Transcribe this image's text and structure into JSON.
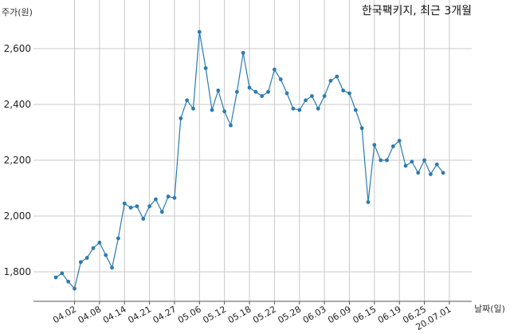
{
  "chart_data": {
    "type": "line",
    "title": "한국팩키지, 최근 3개월",
    "ylabel": "주가(원)",
    "xlabel": "날짜(일)",
    "ylim": [
      1700,
      2750
    ],
    "yticks": [
      1800,
      2000,
      2200,
      2400,
      2600
    ],
    "ytick_labels": [
      "1,800",
      "2,000",
      "2,200",
      "2,400",
      "2,600"
    ],
    "xtick_labels": [
      "04.02",
      "04.08",
      "04.14",
      "04.21",
      "04.27",
      "05.06",
      "05.12",
      "05.18",
      "05.22",
      "05.28",
      "06.03",
      "06.09",
      "06.15",
      "06.19",
      "06.25",
      "20.07.01"
    ],
    "xtick_positions": [
      3,
      7,
      11,
      15,
      19,
      23,
      27,
      31,
      35,
      39,
      43,
      47,
      51,
      55,
      59,
      63
    ],
    "grid": true,
    "line_color": "#2b7bb0",
    "series": [
      {
        "name": "",
        "values": [
          1780,
          1795,
          1765,
          1740,
          1835,
          1850,
          1885,
          1905,
          1860,
          1815,
          1920,
          2045,
          2030,
          2035,
          1990,
          2035,
          2060,
          2015,
          2070,
          2065,
          2350,
          2415,
          2385,
          2660,
          2530,
          2380,
          2450,
          2375,
          2325,
          2445,
          2585,
          2460,
          2445,
          2430,
          2445,
          2525,
          2490,
          2440,
          2385,
          2380,
          2415,
          2430,
          2385,
          2430,
          2485,
          2500,
          2450,
          2440,
          2380,
          2315,
          2050,
          2255,
          2200,
          2200,
          2250,
          2270,
          2180,
          2195,
          2155,
          2200,
          2150,
          2185,
          2155
        ]
      }
    ]
  }
}
